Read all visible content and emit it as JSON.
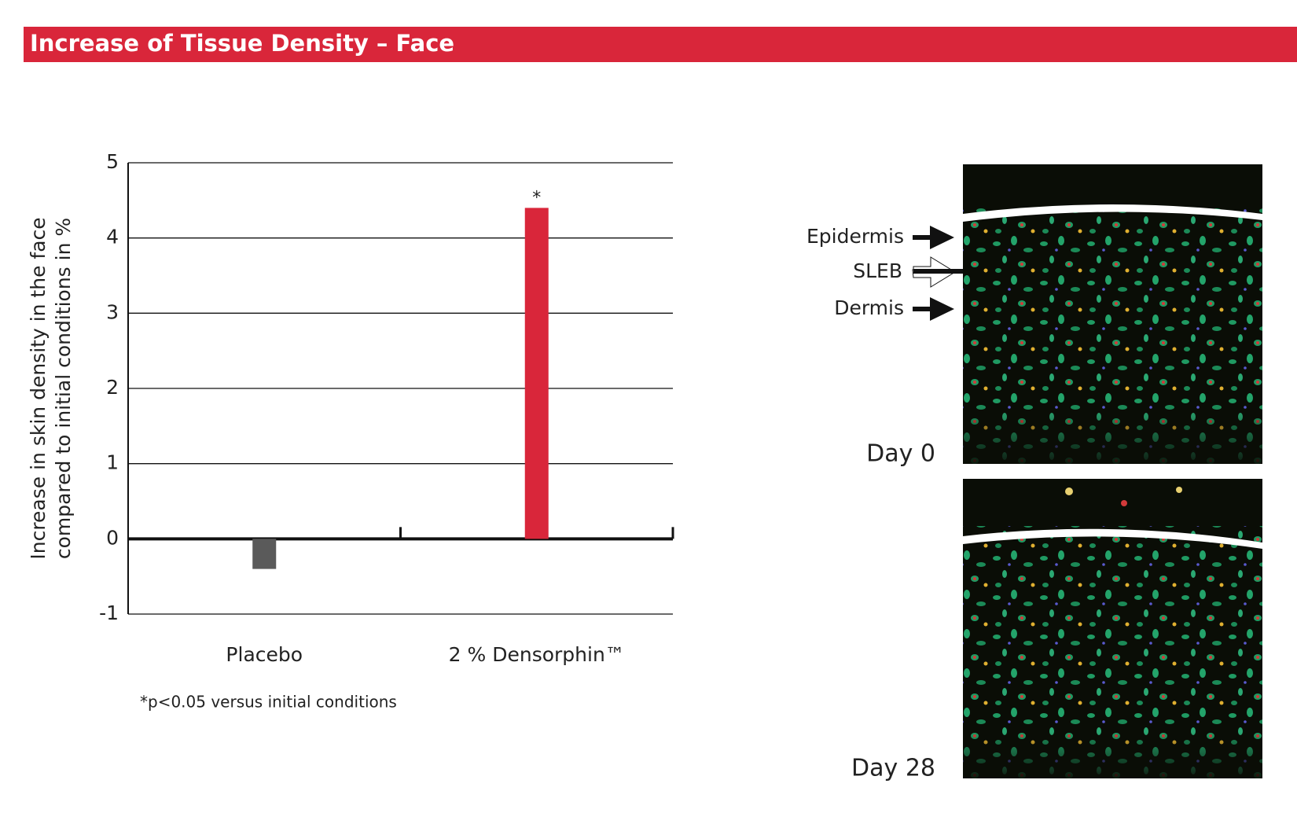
{
  "chart_data": {
    "type": "bar",
    "title": "Increase of Tissue Density – Face",
    "y_label": [
      "Increase in skin density in the face",
      "compared to initial conditions in %"
    ],
    "categories": [
      "Placebo",
      "2 % Densorphin™"
    ],
    "values": [
      -0.4,
      4.4
    ],
    "colors": [
      "#5a5a5a",
      "#d9263a"
    ],
    "annotation": "*",
    "footnote": "*p<0.05 versus initial conditions",
    "ylim": [
      -1,
      5
    ],
    "yticks": [
      -1,
      0,
      1,
      2,
      3,
      4,
      5
    ],
    "grid": true
  },
  "image_panel": {
    "layers": [
      "Epidermis",
      "SLEB",
      "Dermis"
    ],
    "days": [
      "Day 0",
      "Day 28"
    ]
  }
}
